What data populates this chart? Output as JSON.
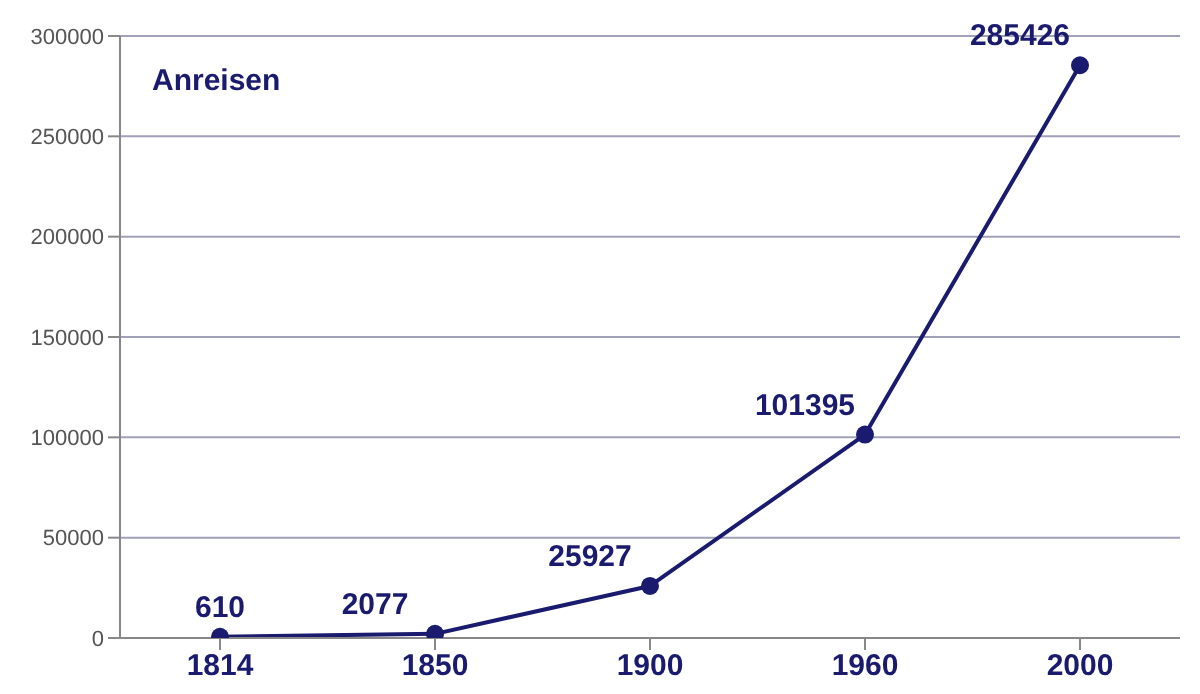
{
  "chart_data": {
    "type": "line",
    "title": "Anreisen",
    "categories": [
      "1814",
      "1850",
      "1900",
      "1960",
      "2000"
    ],
    "series": [
      {
        "color": "#1a1a6e",
        "values": [
          610,
          2077,
          25927,
          101395,
          285426
        ]
      }
    ],
    "ylim": [
      0,
      300000
    ],
    "yticks": [
      0,
      50000,
      100000,
      150000,
      200000,
      250000,
      300000
    ],
    "grid": "y",
    "marker": "circle",
    "line_style": "solid",
    "data_labels": true
  }
}
